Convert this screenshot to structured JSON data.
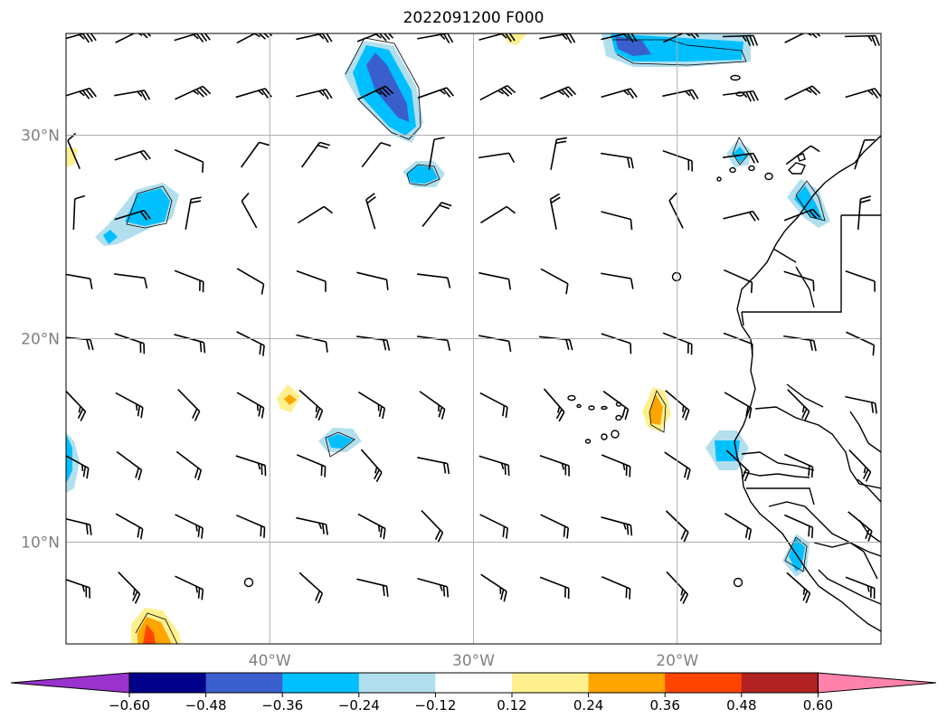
{
  "title": "2022091200 F000",
  "map": {
    "lon_range": [
      -50,
      -10
    ],
    "lat_range": [
      5,
      35
    ],
    "gridlines": true,
    "lat_labels": [
      {
        "lat": 30,
        "label": "30°N"
      },
      {
        "lat": 20,
        "label": "20°N"
      },
      {
        "lat": 10,
        "label": "10°N"
      }
    ],
    "lon_labels": [
      {
        "lon": -40,
        "label": "40°W"
      },
      {
        "lon": -30,
        "label": "30°W"
      },
      {
        "lon": -20,
        "label": "20°W"
      }
    ],
    "layers": [
      "filled-contours",
      "wind-barbs",
      "coastlines",
      "borders"
    ]
  },
  "colorbar": {
    "ticks": [
      "−0.60",
      "−0.48",
      "−0.36",
      "−0.24",
      "−0.12",
      "0.12",
      "0.24",
      "0.36",
      "0.48",
      "0.60"
    ],
    "colors": [
      "#9a32cd",
      "#00008b",
      "#3a5fcd",
      "#00bfff",
      "#b2dfee",
      "#ffffff",
      "#fff08f",
      "#ffa500",
      "#ff4500",
      "#b22222",
      "#ff82ab"
    ],
    "extend": "both"
  }
}
